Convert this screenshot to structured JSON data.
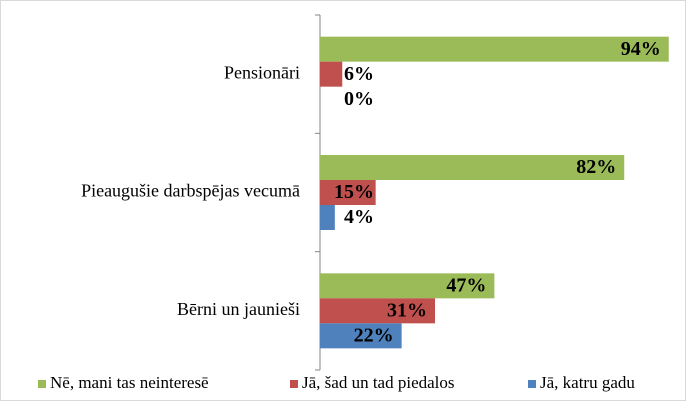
{
  "chart_data": {
    "type": "bar",
    "orientation": "horizontal",
    "categories": [
      "Pensionāri",
      "Pieaugušie darbspējas vecumā",
      "Bērni un jaunieši"
    ],
    "series": [
      {
        "name": "Nē, mani tas neinteresē",
        "color": "#9bbb59",
        "values": [
          94,
          82,
          47
        ],
        "value_labels": [
          "94%",
          "82%",
          "47%"
        ]
      },
      {
        "name": "Jā, šad un tad piedalos",
        "color": "#c0504d",
        "values": [
          6,
          15,
          31
        ],
        "value_labels": [
          "6%",
          "15%",
          "31%"
        ]
      },
      {
        "name": "Jā, katru gadu",
        "color": "#4f81bd",
        "values": [
          0,
          4,
          22
        ],
        "value_labels": [
          "0%",
          "4%",
          "22%"
        ]
      }
    ],
    "xlim": [
      0,
      100
    ],
    "legend": "bottom"
  }
}
